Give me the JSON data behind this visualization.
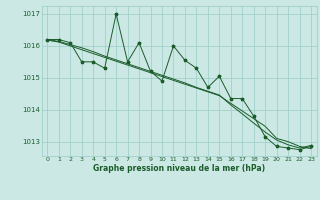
{
  "xlabel": "Graphe pression niveau de la mer (hPa)",
  "ylim": [
    1012.55,
    1017.25
  ],
  "xlim": [
    -0.5,
    23.5
  ],
  "yticks": [
    1013,
    1014,
    1015,
    1016,
    1017
  ],
  "xticks": [
    0,
    1,
    2,
    3,
    4,
    5,
    6,
    7,
    8,
    9,
    10,
    11,
    12,
    13,
    14,
    15,
    16,
    17,
    18,
    19,
    20,
    21,
    22,
    23
  ],
  "bg_color": "#cce8e4",
  "grid_color": "#99ccc6",
  "line_color": "#1a5c2a",
  "line1": [
    1016.2,
    1016.2,
    1016.1,
    1015.5,
    1015.5,
    1015.3,
    1017.0,
    1015.5,
    1016.1,
    1015.2,
    1014.9,
    1016.0,
    1015.55,
    1015.3,
    1014.7,
    1015.05,
    1014.35,
    1014.35,
    1013.8,
    1013.15,
    1012.85,
    1012.8,
    1012.75,
    1012.85
  ],
  "line2": [
    1016.18,
    1016.12,
    1016.0,
    1015.88,
    1015.76,
    1015.64,
    1015.52,
    1015.4,
    1015.28,
    1015.16,
    1015.04,
    1014.92,
    1014.8,
    1014.68,
    1014.56,
    1014.44,
    1014.2,
    1013.96,
    1013.72,
    1013.48,
    1013.1,
    1013.0,
    1012.85,
    1012.78
  ],
  "line3": [
    1016.2,
    1016.14,
    1016.04,
    1015.94,
    1015.82,
    1015.68,
    1015.56,
    1015.44,
    1015.32,
    1015.2,
    1015.08,
    1014.96,
    1014.84,
    1014.7,
    1014.58,
    1014.46,
    1014.15,
    1013.87,
    1013.58,
    1013.3,
    1013.05,
    1012.9,
    1012.8,
    1012.88
  ]
}
